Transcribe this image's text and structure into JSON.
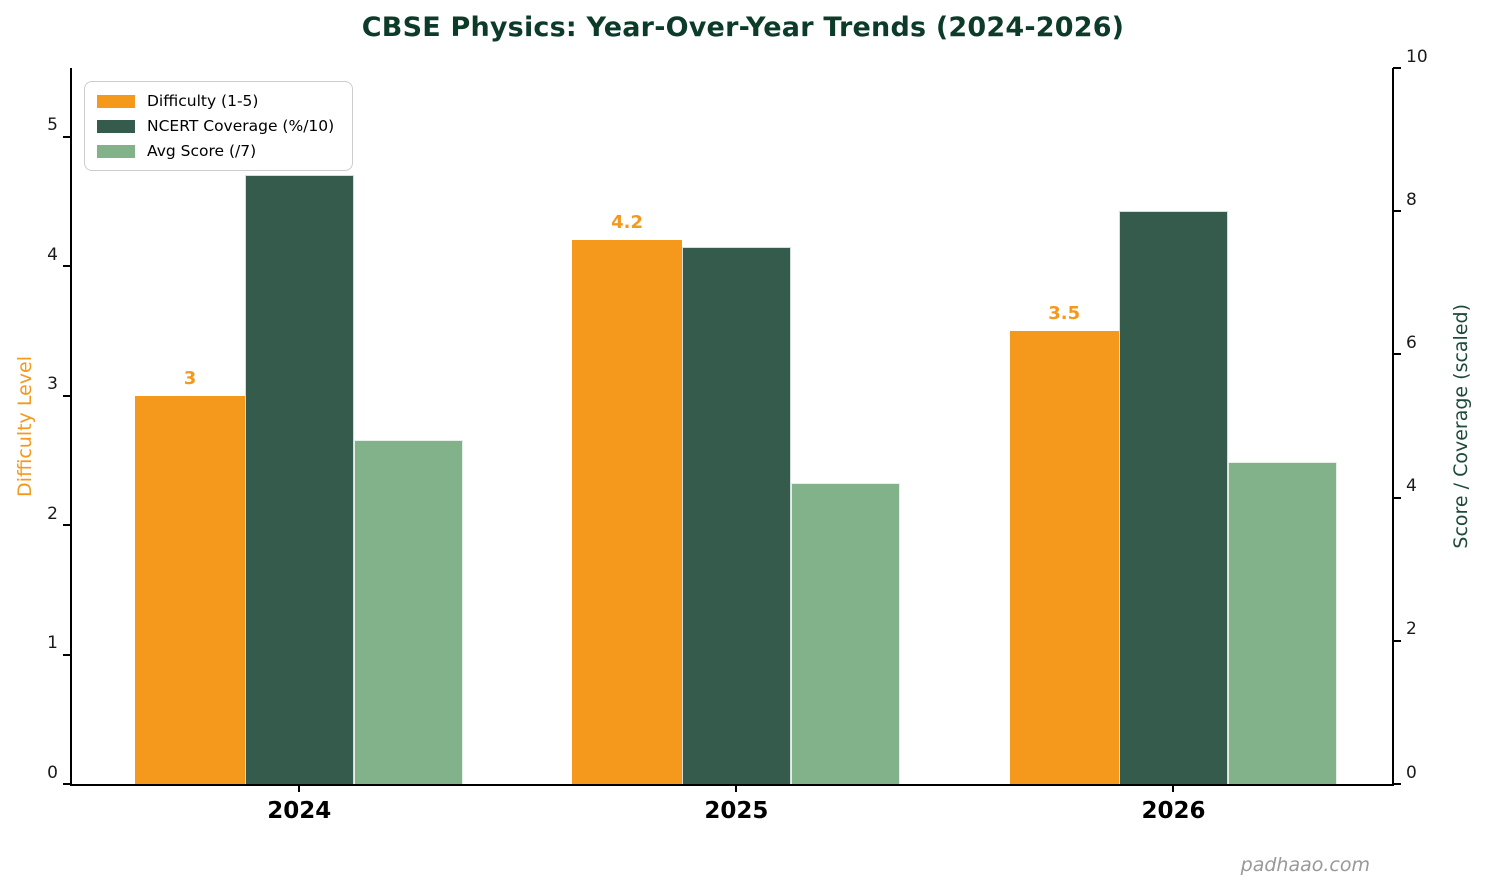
{
  "title": "CBSE Physics: Year-Over-Year Trends (2024-2026)",
  "title_color": "#0d3b2a",
  "watermark": "padhaao.com",
  "chart_data": {
    "type": "bar",
    "title": "CBSE Physics: Year-Over-Year Trends (2024-2026)",
    "categories": [
      "2024",
      "2025",
      "2026"
    ],
    "series": [
      {
        "name": "Difficulty (1-5)",
        "axis": "left",
        "color": "#F5991D",
        "values": [
          3,
          4.2,
          3.5
        ],
        "value_labels": [
          "3",
          "4.2",
          "3.5"
        ],
        "edged": false
      },
      {
        "name": "NCERT Coverage (%/10)",
        "axis": "right",
        "color": "#355B4D",
        "values": [
          8.5,
          7.5,
          8.0
        ],
        "value_labels": null,
        "edged": true
      },
      {
        "name": "Avg Score (/7)",
        "axis": "right",
        "color": "#82B28A",
        "values": [
          4.8,
          4.2,
          4.5
        ],
        "value_labels": null,
        "edged": true
      }
    ],
    "left_axis": {
      "label": "Difficulty Level",
      "color": "#F5991D",
      "ticks": [
        0,
        1,
        2,
        3,
        4,
        5
      ],
      "max": 5.53
    },
    "right_axis": {
      "label": "Score / Coverage (scaled)",
      "color": "#1d4a39",
      "ticks": [
        0,
        2,
        4,
        6,
        8,
        10
      ],
      "max": 10
    },
    "x_axis": {
      "lim": [
        -0.52,
        2.5
      ]
    },
    "bar_width": 0.25,
    "grid": false,
    "legend_position": "upper left"
  }
}
